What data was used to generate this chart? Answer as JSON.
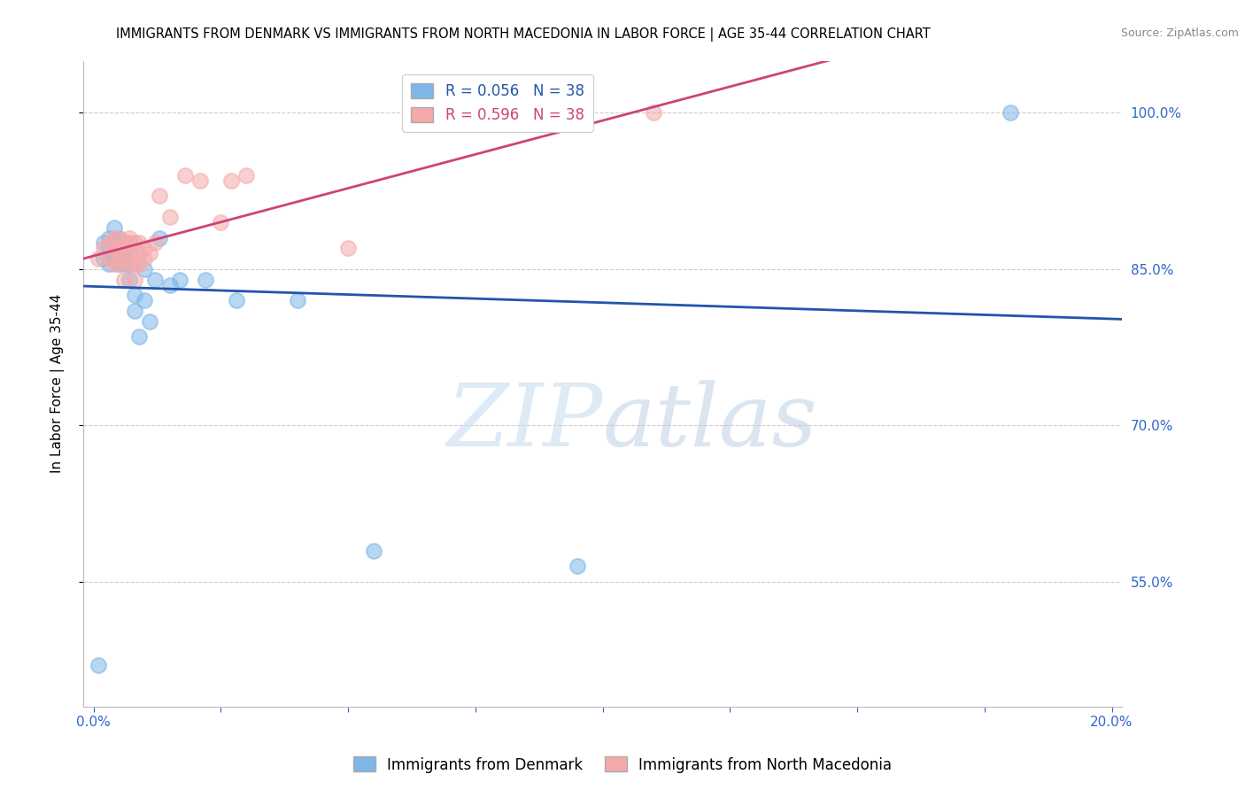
{
  "title": "IMMIGRANTS FROM DENMARK VS IMMIGRANTS FROM NORTH MACEDONIA IN LABOR FORCE | AGE 35-44 CORRELATION CHART",
  "source": "Source: ZipAtlas.com",
  "ylabel": "In Labor Force | Age 35-44",
  "y_ticks": [
    0.55,
    0.7,
    0.85,
    1.0
  ],
  "y_tick_labels": [
    "55.0%",
    "70.0%",
    "85.0%",
    "100.0%"
  ],
  "x_ticks": [
    0.0,
    0.025,
    0.05,
    0.075,
    0.1,
    0.125,
    0.15,
    0.175,
    0.2
  ],
  "x_lim": [
    -0.002,
    0.202
  ],
  "y_lim": [
    0.43,
    1.05
  ],
  "denmark_R": "0.056",
  "denmark_N": "38",
  "macedonia_R": "0.596",
  "macedonia_N": "38",
  "denmark_color": "#7EB6E8",
  "macedonia_color": "#F4AAAA",
  "denmark_edge": "#5599CC",
  "macedonia_edge": "#DD8888",
  "trend_denmark_color": "#2255AA",
  "trend_macedonia_color": "#CC4477",
  "denmark_x": [
    0.001,
    0.002,
    0.002,
    0.003,
    0.003,
    0.003,
    0.004,
    0.004,
    0.004,
    0.004,
    0.005,
    0.005,
    0.005,
    0.005,
    0.005,
    0.006,
    0.006,
    0.006,
    0.006,
    0.007,
    0.007,
    0.007,
    0.008,
    0.008,
    0.009,
    0.01,
    0.01,
    0.011,
    0.012,
    0.013,
    0.015,
    0.017,
    0.022,
    0.028,
    0.04,
    0.055,
    0.095,
    0.18
  ],
  "denmark_y": [
    0.47,
    0.86,
    0.875,
    0.855,
    0.87,
    0.88,
    0.86,
    0.87,
    0.875,
    0.89,
    0.855,
    0.86,
    0.865,
    0.875,
    0.88,
    0.855,
    0.86,
    0.87,
    0.875,
    0.84,
    0.855,
    0.865,
    0.81,
    0.825,
    0.785,
    0.82,
    0.85,
    0.8,
    0.84,
    0.88,
    0.835,
    0.84,
    0.84,
    0.82,
    0.82,
    0.58,
    0.565,
    1.0
  ],
  "macedonia_x": [
    0.001,
    0.002,
    0.003,
    0.003,
    0.004,
    0.004,
    0.004,
    0.005,
    0.005,
    0.005,
    0.005,
    0.006,
    0.006,
    0.006,
    0.006,
    0.007,
    0.007,
    0.007,
    0.007,
    0.008,
    0.008,
    0.008,
    0.009,
    0.009,
    0.009,
    0.01,
    0.01,
    0.011,
    0.012,
    0.013,
    0.015,
    0.018,
    0.021,
    0.025,
    0.027,
    0.03,
    0.05,
    0.11
  ],
  "macedonia_y": [
    0.86,
    0.87,
    0.86,
    0.875,
    0.855,
    0.87,
    0.88,
    0.855,
    0.86,
    0.87,
    0.88,
    0.84,
    0.86,
    0.87,
    0.875,
    0.855,
    0.865,
    0.875,
    0.88,
    0.84,
    0.855,
    0.875,
    0.855,
    0.865,
    0.875,
    0.86,
    0.87,
    0.865,
    0.875,
    0.92,
    0.9,
    0.94,
    0.935,
    0.895,
    0.935,
    0.94,
    0.87,
    1.0
  ],
  "background_color": "#ffffff",
  "grid_color": "#cccccc",
  "axis_color": "#3366CC",
  "watermark_zip": "ZIP",
  "watermark_atlas": "atlas",
  "title_fontsize": 10.5,
  "axis_label_fontsize": 11,
  "tick_fontsize": 11,
  "legend_fontsize": 12
}
